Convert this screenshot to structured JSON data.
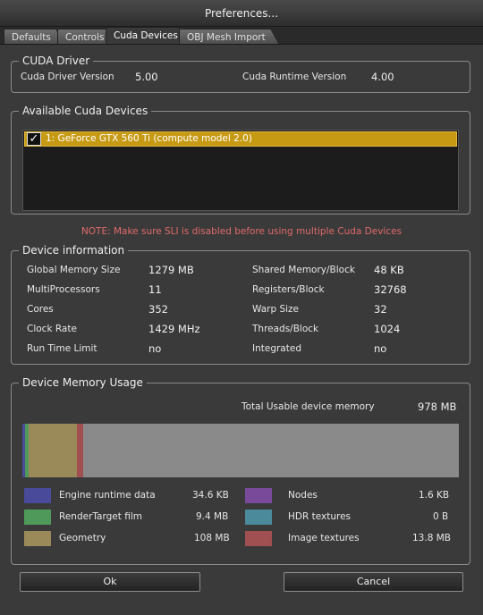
{
  "window": {
    "title": "Preferences..."
  },
  "tabs": [
    {
      "label": "Defaults"
    },
    {
      "label": "Controls"
    },
    {
      "label": "Cuda Devices"
    },
    {
      "label": "OBJ Mesh Import"
    }
  ],
  "cuda_driver": {
    "title": "CUDA Driver",
    "driver_label": "Cuda Driver Version",
    "driver_value": "5.00",
    "runtime_label": "Cuda Runtime Version",
    "runtime_value": "4.00"
  },
  "devices": {
    "title": "Available Cuda Devices",
    "items": [
      {
        "label": "1: GeForce GTX 560 Ti (compute model 2.0)",
        "checked": true,
        "check_glyph": "✓"
      }
    ]
  },
  "note": "NOTE: Make sure SLI is disabled before using multiple Cuda Devices",
  "device_info": {
    "title": "Device information",
    "left": [
      {
        "label": "Global Memory Size",
        "value": "1279 MB"
      },
      {
        "label": "MultiProcessors",
        "value": "11"
      },
      {
        "label": "Cores",
        "value": "352"
      },
      {
        "label": "Clock Rate",
        "value": "1429 MHz"
      },
      {
        "label": "Run Time Limit",
        "value": "no"
      }
    ],
    "right": [
      {
        "label": "Shared Memory/Block",
        "value": "48 KB"
      },
      {
        "label": "Registers/Block",
        "value": "32768"
      },
      {
        "label": "Warp Size",
        "value": "32"
      },
      {
        "label": "Threads/Block",
        "value": "1024"
      },
      {
        "label": "Integrated",
        "value": "no"
      }
    ]
  },
  "memory_usage": {
    "title": "Device Memory Usage",
    "total_label": "Total Usable device memory",
    "total_value": "978 MB",
    "bar": {
      "total_mb": 978,
      "segments_mb": [
        {
          "name": "Engine runtime data",
          "mb": 0.0338,
          "color": "#4a4a9a"
        },
        {
          "name": "RenderTarget film",
          "mb": 9.4,
          "color": "#4f9a5a"
        },
        {
          "name": "Geometry",
          "mb": 108,
          "color": "#9a8a5a"
        },
        {
          "name": "Image textures",
          "mb": 13.8,
          "color": "#a05050"
        }
      ]
    },
    "legend": [
      {
        "label": "Engine runtime data",
        "value": "34.6 KB",
        "color": "#4a4a9a"
      },
      {
        "label": "Nodes",
        "value": "1.6 KB",
        "color": "#7a4a9a"
      },
      {
        "label": "RenderTarget film",
        "value": "9.4 MB",
        "color": "#4f9a5a"
      },
      {
        "label": "HDR textures",
        "value": "0 B",
        "color": "#4a8a9a"
      },
      {
        "label": "Geometry",
        "value": "108 MB",
        "color": "#9a8a5a"
      },
      {
        "label": "Image textures",
        "value": "13.8 MB",
        "color": "#a05050"
      }
    ]
  },
  "buttons": {
    "ok": "Ok",
    "cancel": "Cancel"
  }
}
